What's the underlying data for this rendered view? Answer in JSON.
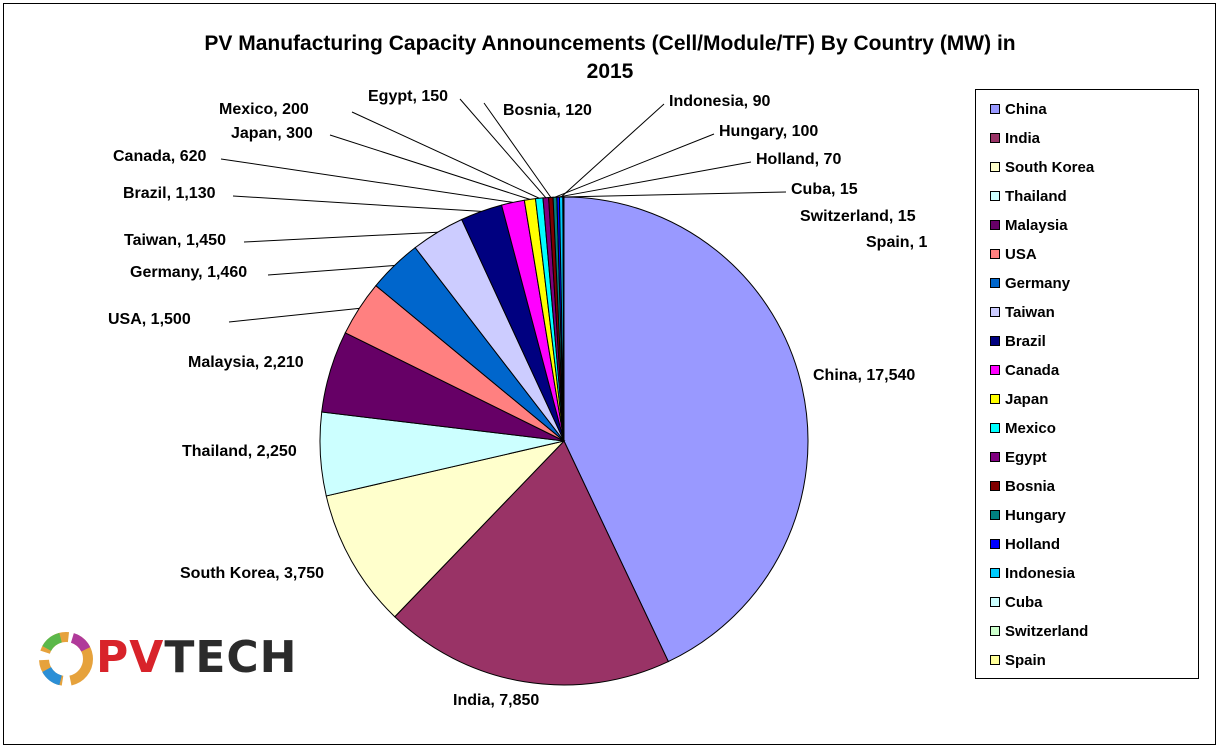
{
  "chart_data": {
    "type": "pie",
    "title": "PV Manufacturing Capacity Announcements (Cell/Module/TF) By Country (MW) in 2015",
    "title_lines": [
      "PV Manufacturing Capacity Announcements (Cell/Module/TF) By Country (MW) in",
      "2015"
    ],
    "legend_position": "right",
    "slices": [
      {
        "name": "China",
        "value": 17540,
        "label": "China, 17,540",
        "color": "#9999FF"
      },
      {
        "name": "India",
        "value": 7850,
        "label": "India, 7,850",
        "color": "#993366"
      },
      {
        "name": "South Korea",
        "value": 3750,
        "label": "South Korea, 3,750",
        "color": "#FFFFCC"
      },
      {
        "name": "Thailand",
        "value": 2250,
        "label": "Thailand, 2,250",
        "color": "#CCFFFF"
      },
      {
        "name": "Malaysia",
        "value": 2210,
        "label": "Malaysia, 2,210",
        "color": "#660066"
      },
      {
        "name": "USA",
        "value": 1500,
        "label": "USA, 1,500",
        "color": "#FF8080"
      },
      {
        "name": "Germany",
        "value": 1460,
        "label": "Germany, 1,460",
        "color": "#0066CC"
      },
      {
        "name": "Taiwan",
        "value": 1450,
        "label": "Taiwan, 1,450",
        "color": "#CCCCFF"
      },
      {
        "name": "Brazil",
        "value": 1130,
        "label": "Brazil, 1,130",
        "color": "#000080"
      },
      {
        "name": "Canada",
        "value": 620,
        "label": "Canada, 620",
        "color": "#FF00FF"
      },
      {
        "name": "Japan",
        "value": 300,
        "label": "Japan, 300",
        "color": "#FFFF00"
      },
      {
        "name": "Mexico",
        "value": 200,
        "label": "Mexico, 200",
        "color": "#00FFFF"
      },
      {
        "name": "Egypt",
        "value": 150,
        "label": "Egypt, 150",
        "color": "#800080"
      },
      {
        "name": "Bosnia",
        "value": 120,
        "label": "Bosnia, 120",
        "color": "#800000"
      },
      {
        "name": "Hungary",
        "value": 100,
        "label": "Hungary, 100",
        "color": "#008080"
      },
      {
        "name": "Holland",
        "value": 70,
        "label": "Holland, 70",
        "color": "#0000FF"
      },
      {
        "name": "Indonesia",
        "value": 90,
        "label": "Indonesia, 90",
        "color": "#00CCFF"
      },
      {
        "name": "Cuba",
        "value": 15,
        "label": "Cuba, 15",
        "color": "#CCFFFF"
      },
      {
        "name": "Switzerland",
        "value": 15,
        "label": "Switzerland, 15",
        "color": "#CCFFCC"
      },
      {
        "name": "Spain",
        "value": 1,
        "label": "Spain, 1",
        "color": "#FFFF99"
      }
    ]
  },
  "logo": {
    "prefix": "PV",
    "suffix": "TECH"
  }
}
